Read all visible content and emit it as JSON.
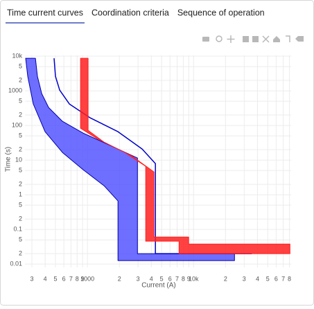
{
  "tabs": [
    "Time current curves",
    "Coordination criteria",
    "Sequence of operation"
  ],
  "active_tab": 0,
  "chart_data": {
    "type": "line",
    "xlabel": "Current (A)",
    "ylabel": "Time (s)",
    "xscale": "log",
    "yscale": "log",
    "grid": true,
    "xlim": [
      258,
      83000
    ],
    "ylim": [
      0.008,
      10500
    ],
    "xticks": [
      {
        "value": 300,
        "label": "3"
      },
      {
        "value": 400,
        "label": "4"
      },
      {
        "value": 500,
        "label": "5"
      },
      {
        "value": 600,
        "label": "6"
      },
      {
        "value": 700,
        "label": "7"
      },
      {
        "value": 800,
        "label": "8"
      },
      {
        "value": 900,
        "label": "9"
      },
      1000,
      {
        "value": 2000,
        "label": "2"
      },
      {
        "value": 3000,
        "label": "3"
      },
      {
        "value": 4000,
        "label": "4"
      },
      {
        "value": 5000,
        "label": "5"
      },
      {
        "value": 6000,
        "label": "6"
      },
      {
        "value": 7000,
        "label": "7"
      },
      {
        "value": 8000,
        "label": "8"
      },
      {
        "value": 9000,
        "label": "9"
      },
      {
        "value": 10000,
        "label": "10k"
      },
      {
        "value": 20000,
        "label": "2"
      },
      {
        "value": 30000,
        "label": "3"
      },
      {
        "value": 40000,
        "label": "4"
      },
      {
        "value": 50000,
        "label": "5"
      },
      {
        "value": 60000,
        "label": "6"
      },
      {
        "value": 70000,
        "label": "7"
      },
      {
        "value": 80000,
        "label": "8"
      }
    ],
    "yticks": [
      {
        "value": 10000,
        "label": "10k"
      },
      {
        "value": 5000,
        "label": "5"
      },
      {
        "value": 2000,
        "label": "2"
      },
      1000,
      {
        "value": 500,
        "label": "5"
      },
      {
        "value": 200,
        "label": "2"
      },
      100,
      {
        "value": 50,
        "label": "5"
      },
      {
        "value": 20,
        "label": "2"
      },
      10,
      {
        "value": 5,
        "label": "5"
      },
      {
        "value": 2,
        "label": "2"
      },
      1,
      {
        "value": 0.5,
        "label": "5"
      },
      {
        "value": 0.2,
        "label": "2"
      },
      0.1,
      {
        "value": 0.05,
        "label": "5"
      },
      {
        "value": 0.02,
        "label": "2"
      },
      0.01
    ],
    "series": [
      {
        "color": "#0000aa",
        "fill": "#5555ff",
        "x": [
          324,
          338,
          371,
          431,
          582,
          914,
          1667,
          2960,
          2960,
          24300,
          24300,
          1940,
          1940,
          1435,
          914,
          582,
          399,
          309,
          274,
          262
        ],
        "y": [
          8710,
          2630,
          832,
          331,
          132,
          60,
          26,
          11.5,
          0.02,
          0.02,
          0.0126,
          0.0126,
          0.66,
          1.82,
          5.25,
          16.6,
          66,
          417,
          2630,
          8710
        ]
      },
      {
        "color": "#0000cc",
        "fill": null,
        "x": [
          485,
          500,
          548,
          676,
          1062,
          1940,
          3280,
          4370,
          4370,
          35400
        ],
        "y": [
          8710,
          2630,
          1047,
          417,
          166,
          66,
          20.9,
          7.94,
          0.02,
          0.02
        ]
      },
      {
        "color": "#ff2020",
        "fill": "#ff2020",
        "x": [
          861,
          861,
          1235,
          2254,
          3540,
          3540,
          7300,
          7300,
          80900,
          80900,
          9000,
          9000,
          4236,
          4236,
          2620,
          1435,
          1015,
          1015
        ],
        "y": [
          8710,
          83,
          41.7,
          16.6,
          6.6,
          0.0457,
          0.0457,
          0.02,
          0.02,
          0.038,
          0.038,
          0.0603,
          0.0603,
          4.57,
          13.2,
          33,
          72,
          8710
        ]
      }
    ]
  }
}
